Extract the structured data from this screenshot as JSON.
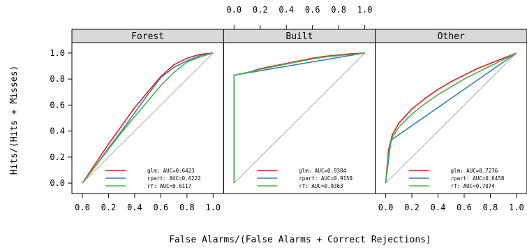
{
  "chart_data": {
    "type": "line",
    "xlabel": "False Alarms/(False Alarms + Correct Rejections)",
    "ylabel": "Hits/(Hits + Misses)",
    "xlim": [
      -0.08,
      1.08
    ],
    "ylim": [
      -0.08,
      1.08
    ],
    "ticks": [
      "0.0",
      "0.2",
      "0.4",
      "0.6",
      "0.8",
      "1.0"
    ],
    "tick_values": [
      0,
      0.2,
      0.4,
      0.6,
      0.8,
      1.0
    ],
    "diagonal_color": "#bebebe",
    "colors": {
      "glm": "#e41a1c",
      "rpart": "#377eb8",
      "rf": "#4daf4a"
    },
    "panels": [
      {
        "title": "Forest",
        "series": [
          {
            "key": "glm",
            "legend": "glm: AUC=0.6423",
            "x": [
              0,
              0.1,
              0.2,
              0.3,
              0.4,
              0.5,
              0.6,
              0.7,
              0.8,
              0.9,
              1.0
            ],
            "y": [
              0,
              0.15,
              0.3,
              0.44,
              0.58,
              0.7,
              0.82,
              0.91,
              0.96,
              0.99,
              1.0
            ]
          },
          {
            "key": "rpart",
            "legend": "rpart: AUC=0.6222",
            "x": [
              0,
              0.1,
              0.2,
              0.3,
              0.4,
              0.5,
              0.6,
              0.7,
              0.8,
              0.9,
              1.0
            ],
            "y": [
              0,
              0.13,
              0.27,
              0.4,
              0.54,
              0.68,
              0.81,
              0.89,
              0.94,
              0.98,
              1.0
            ]
          },
          {
            "key": "rf",
            "legend": "rf: AUC=0.6117",
            "x": [
              0,
              0.1,
              0.2,
              0.3,
              0.4,
              0.5,
              0.6,
              0.7,
              0.8,
              0.9,
              1.0
            ],
            "y": [
              0,
              0.13,
              0.26,
              0.39,
              0.51,
              0.63,
              0.75,
              0.85,
              0.93,
              0.97,
              1.0
            ]
          }
        ]
      },
      {
        "title": "Built",
        "series": [
          {
            "key": "glm",
            "legend": "glm: AUC=0.9384",
            "x": [
              0,
              0,
              0.1,
              0.2,
              0.3,
              0.4,
              0.5,
              0.6,
              0.7,
              0.8,
              0.9,
              1.0
            ],
            "y": [
              0,
              0.83,
              0.85,
              0.88,
              0.9,
              0.92,
              0.94,
              0.96,
              0.975,
              0.985,
              0.995,
              1.0
            ]
          },
          {
            "key": "rpart",
            "legend": "rpart: AUC=0.9158",
            "x": [
              0,
              0,
              1.0
            ],
            "y": [
              0,
              0.83,
              1.0
            ]
          },
          {
            "key": "rf",
            "legend": "rf: AUC=0.9363",
            "x": [
              0,
              0,
              0.1,
              0.2,
              0.3,
              0.4,
              0.5,
              0.6,
              0.7,
              0.8,
              0.9,
              1.0
            ],
            "y": [
              0,
              0.83,
              0.85,
              0.875,
              0.895,
              0.915,
              0.935,
              0.955,
              0.97,
              0.98,
              0.99,
              1.0
            ]
          }
        ]
      },
      {
        "title": "Other",
        "series": [
          {
            "key": "glm",
            "legend": "glm: AUC=0.7276",
            "x": [
              0,
              0.02,
              0.05,
              0.1,
              0.2,
              0.3,
              0.4,
              0.5,
              0.6,
              0.7,
              0.8,
              0.9,
              1.0
            ],
            "y": [
              0,
              0.25,
              0.37,
              0.46,
              0.57,
              0.65,
              0.72,
              0.78,
              0.83,
              0.88,
              0.92,
              0.96,
              1.0
            ]
          },
          {
            "key": "rpart",
            "legend": "rpart: AUC=0.6458",
            "x": [
              0,
              0.04,
              1.0
            ],
            "y": [
              0,
              0.33,
              1.0
            ]
          },
          {
            "key": "rf",
            "legend": "rf: AUC=0.7074",
            "x": [
              0,
              0.02,
              0.05,
              0.1,
              0.2,
              0.3,
              0.4,
              0.5,
              0.6,
              0.7,
              0.8,
              0.9,
              1.0
            ],
            "y": [
              0,
              0.23,
              0.35,
              0.43,
              0.53,
              0.61,
              0.68,
              0.74,
              0.8,
              0.85,
              0.9,
              0.95,
              1.0
            ]
          }
        ]
      }
    ]
  }
}
